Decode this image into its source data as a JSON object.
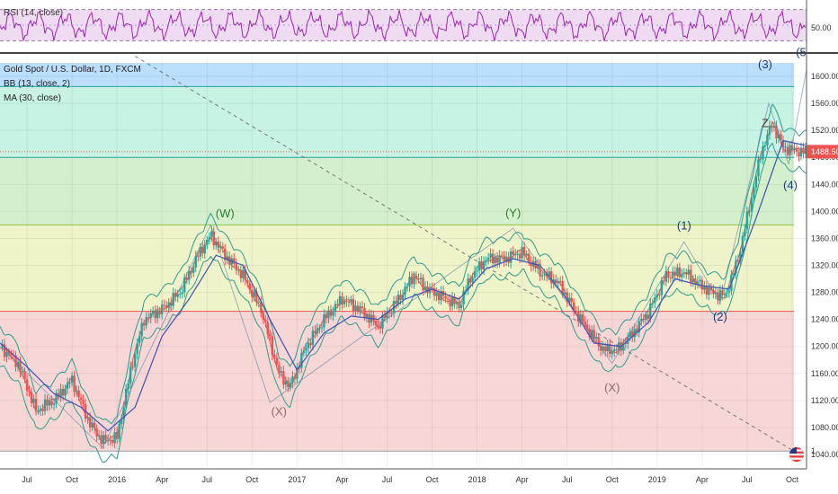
{
  "rsi_pane": {
    "legend": "RSI (14, close)",
    "axis_label": "50.00",
    "levels": [
      30,
      50,
      70
    ],
    "line_color": "#9c27b0",
    "band_color": "#e1bee7"
  },
  "main_pane": {
    "legend_lines": [
      "Gold Spot / U.S. Dollar, 1D, FXCM",
      "BB (13, close, 2)",
      "MA (30, close)"
    ],
    "price_labels": [
      "1600.00",
      "1560.00",
      "1520.00",
      "1480.00",
      "1440.00",
      "1400.00",
      "1360.00",
      "1320.00",
      "1280.00",
      "1240.00",
      "1200.00",
      "1160.00",
      "1120.00",
      "1080.00",
      "1040.00"
    ],
    "last_price": "1488.50",
    "last_price_color": "#ef5350",
    "partial_axis_label": "1",
    "flag_icon": "us-flag-icon",
    "fib_zones": [
      {
        "from": 1585,
        "to": 1620,
        "color": "#bbdefb"
      },
      {
        "from": 1480,
        "to": 1585,
        "color": "#c8f2e3"
      },
      {
        "from": 1380,
        "to": 1480,
        "color": "#d4efcc"
      },
      {
        "from": 1252,
        "to": 1380,
        "color": "#eef3c9"
      },
      {
        "from": 1045,
        "to": 1252,
        "color": "#f7d6d6"
      }
    ],
    "fib_lines": [
      {
        "price": 1585,
        "color": "#26a69a"
      },
      {
        "price": 1480,
        "color": "#26a69a"
      },
      {
        "price": 1380,
        "color": "#8bc34a"
      },
      {
        "price": 1252,
        "color": "#ef5350"
      },
      {
        "price": 1045,
        "color": "#90a4ae"
      }
    ],
    "wave_labels": [
      {
        "text": "(W)",
        "x": 2016.6,
        "y": 1391,
        "color": "#2e7d32"
      },
      {
        "text": "(X)",
        "x": 2016.9,
        "y": 1098,
        "color": "#8d6e63"
      },
      {
        "text": "(Y)",
        "x": 2018.2,
        "y": 1392,
        "color": "#2e7d32"
      },
      {
        "text": "(X)",
        "x": 2018.75,
        "y": 1133,
        "color": "#8d6e63"
      },
      {
        "text": "(1)",
        "x": 2019.15,
        "y": 1373,
        "color": "#1a3c7a"
      },
      {
        "text": "(2)",
        "x": 2019.35,
        "y": 1238,
        "color": "#1a3c7a"
      },
      {
        "text": "(3)",
        "x": 2019.6,
        "y": 1612,
        "color": "#1a3c7a"
      },
      {
        "text": "Z",
        "x": 2019.6,
        "y": 1525,
        "color": "#4e342e"
      },
      {
        "text": "(4)",
        "x": 2019.74,
        "y": 1433,
        "color": "#1a3c7a"
      },
      {
        "text": "(5",
        "x": 2019.8,
        "y": 1630,
        "color": "#1a3c7a"
      }
    ]
  },
  "time_axis": {
    "labels": [
      {
        "text": "Jul",
        "t": 2015.5
      },
      {
        "text": "Oct",
        "t": 2015.75
      },
      {
        "text": "2016",
        "t": 2016.0
      },
      {
        "text": "Apr",
        "t": 2016.25
      },
      {
        "text": "Jul",
        "t": 2016.5
      },
      {
        "text": "Oct",
        "t": 2016.75
      },
      {
        "text": "2017",
        "t": 2017.0
      },
      {
        "text": "Apr",
        "t": 2017.25
      },
      {
        "text": "Jul",
        "t": 2017.5
      },
      {
        "text": "Oct",
        "t": 2017.75
      },
      {
        "text": "2018",
        "t": 2018.0
      },
      {
        "text": "Apr",
        "t": 2018.25
      },
      {
        "text": "Jul",
        "t": 2018.5
      },
      {
        "text": "Oct",
        "t": 2018.75
      },
      {
        "text": "2019",
        "t": 2019.0
      },
      {
        "text": "Apr",
        "t": 2019.25
      },
      {
        "text": "Jul",
        "t": 2019.5
      },
      {
        "text": "Oct",
        "t": 2019.75
      }
    ]
  },
  "chart_data": {
    "type": "line",
    "title": "Gold Spot / U.S. Dollar, 1D, FXCM",
    "xlabel": "",
    "ylabel": "",
    "xlim": [
      2015.35,
      2019.83
    ],
    "ylim": [
      1020,
      1632
    ],
    "grid": true,
    "series": [
      {
        "name": "Gold Spot / U.S. Dollar",
        "x": [
          2015.35,
          2015.45,
          2015.55,
          2015.65,
          2015.75,
          2015.85,
          2015.92,
          2016.0,
          2016.08,
          2016.15,
          2016.25,
          2016.35,
          2016.45,
          2016.52,
          2016.6,
          2016.7,
          2016.8,
          2016.9,
          2016.96,
          2017.05,
          2017.15,
          2017.25,
          2017.35,
          2017.45,
          2017.55,
          2017.65,
          2017.72,
          2017.8,
          2017.9,
          2017.96,
          2018.05,
          2018.15,
          2018.25,
          2018.35,
          2018.45,
          2018.55,
          2018.63,
          2018.7,
          2018.78,
          2018.85,
          2018.95,
          2019.05,
          2019.15,
          2019.22,
          2019.3,
          2019.38,
          2019.45,
          2019.52,
          2019.58,
          2019.64,
          2019.7,
          2019.76,
          2019.82
        ],
        "values": [
          1200,
          1175,
          1105,
          1120,
          1150,
          1085,
          1060,
          1065,
          1170,
          1240,
          1255,
          1280,
          1335,
          1365,
          1335,
          1305,
          1255,
          1160,
          1140,
          1200,
          1240,
          1270,
          1255,
          1230,
          1265,
          1305,
          1285,
          1275,
          1260,
          1300,
          1330,
          1330,
          1340,
          1310,
          1295,
          1250,
          1220,
          1195,
          1195,
          1215,
          1250,
          1305,
          1310,
          1295,
          1280,
          1275,
          1330,
          1415,
          1490,
          1530,
          1495,
          1490,
          1488.5
        ]
      },
      {
        "name": "MA (30, close)",
        "x": [
          2015.35,
          2015.5,
          2015.65,
          2015.8,
          2015.95,
          2016.1,
          2016.25,
          2016.4,
          2016.55,
          2016.7,
          2016.85,
          2017.0,
          2017.15,
          2017.3,
          2017.45,
          2017.6,
          2017.75,
          2017.9,
          2018.05,
          2018.2,
          2018.35,
          2018.5,
          2018.65,
          2018.8,
          2018.95,
          2019.1,
          2019.25,
          2019.4,
          2019.55,
          2019.7,
          2019.82
        ],
        "values": [
          1205,
          1170,
          1130,
          1110,
          1075,
          1110,
          1215,
          1270,
          1335,
          1320,
          1240,
          1165,
          1220,
          1245,
          1240,
          1270,
          1285,
          1270,
          1315,
          1330,
          1320,
          1270,
          1205,
          1200,
          1235,
          1300,
          1290,
          1285,
          1390,
          1505,
          1498
        ]
      }
    ]
  }
}
